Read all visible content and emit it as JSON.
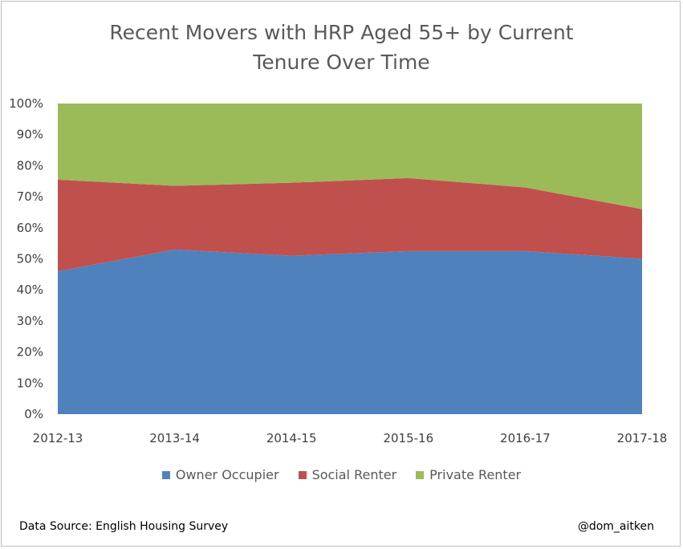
{
  "chart_data": {
    "type": "area",
    "stacked": true,
    "title_lines": [
      "Recent Movers with HRP Aged 55+ by Current",
      "Tenure Over Time"
    ],
    "xlabel": "",
    "ylabel": "",
    "categories": [
      "2012-13",
      "2013-14",
      "2014-15",
      "2015-16",
      "2016-17",
      "2017-18"
    ],
    "ylim": [
      0,
      100
    ],
    "y_ticks": [
      "0%",
      "10%",
      "20%",
      "30%",
      "40%",
      "50%",
      "60%",
      "70%",
      "80%",
      "90%",
      "100%"
    ],
    "series": [
      {
        "name": "Owner Occupier",
        "color": "#4f81bd",
        "values": [
          46,
          53,
          51,
          52.5,
          52.5,
          50
        ]
      },
      {
        "name": "Social Renter",
        "color": "#c0504d",
        "values": [
          29.5,
          20.5,
          23.5,
          23.5,
          20.5,
          16
        ]
      },
      {
        "name": "Private Renter",
        "color": "#9bbb59",
        "values": [
          24.5,
          26.5,
          25.5,
          24,
          27,
          34
        ]
      }
    ],
    "grid": false,
    "legend_position": "bottom"
  },
  "footer": {
    "source": "Data Source: English Housing Survey",
    "handle": "@dom_aitken"
  }
}
